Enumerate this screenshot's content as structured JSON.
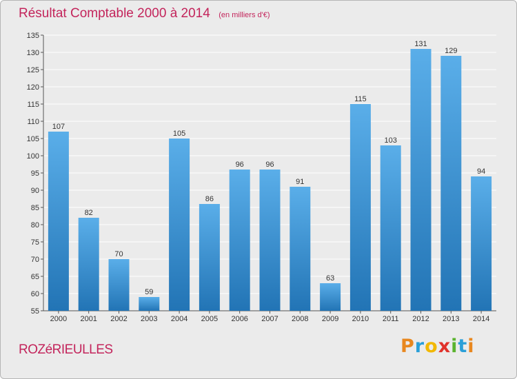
{
  "title": "Résultat Comptable 2000 à 2014",
  "subtitle": "(en milliers d'€)",
  "commune": "ROZéRIEULLES",
  "brand": {
    "name": "Proxiti",
    "letter_colors": [
      "#e8871e",
      "#2a9fd8",
      "#f2b800",
      "#e0322b",
      "#5bb32e",
      "#2a9fd8",
      "#e8871e"
    ]
  },
  "colors": {
    "bar_light": "#5aaee9",
    "bar_dark": "#2274b5",
    "title": "#c3245b",
    "grid": "#ffffff",
    "background": "#ebebeb"
  },
  "chart_data": {
    "type": "bar",
    "title": "Résultat Comptable 2000 à 2014",
    "categories": [
      "2000",
      "2001",
      "2002",
      "2003",
      "2004",
      "2005",
      "2006",
      "2007",
      "2008",
      "2009",
      "2010",
      "2011",
      "2012",
      "2013",
      "2014"
    ],
    "values": [
      107,
      82,
      70,
      59,
      105,
      86,
      96,
      96,
      91,
      63,
      115,
      103,
      131,
      129,
      94
    ],
    "ylim": [
      55,
      135
    ],
    "yticks": [
      55,
      60,
      65,
      70,
      75,
      80,
      85,
      90,
      95,
      100,
      105,
      110,
      115,
      120,
      125,
      130,
      135
    ],
    "grid": true,
    "xlabel": "",
    "ylabel": ""
  }
}
